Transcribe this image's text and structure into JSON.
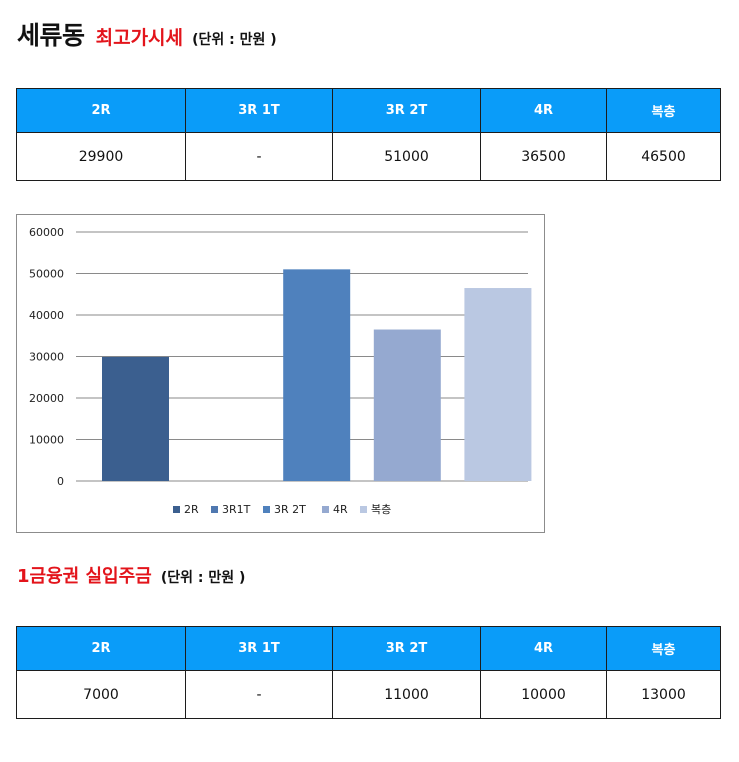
{
  "section1": {
    "title": "세류동",
    "subtitle": "최고가시세",
    "unit": "(단위 : 만원 )",
    "headers": [
      "2R",
      "3R 1T",
      "3R 2T",
      "4R",
      "복층"
    ],
    "values": [
      "29900",
      "-",
      "51000",
      "36500",
      "46500"
    ]
  },
  "chart_data": {
    "type": "bar",
    "categories": [
      "2R",
      "3R1T",
      "3R 2T",
      "4R",
      "복층"
    ],
    "values": [
      29900,
      0,
      51000,
      36500,
      46500
    ],
    "colors": [
      "#3b5f8f",
      "#4f78b0",
      "#4f81bd",
      "#95a9d0",
      "#bac8e2"
    ],
    "ylim": [
      0,
      60000
    ],
    "yticks": [
      "0",
      "10000",
      "20000",
      "30000",
      "40000",
      "50000",
      "60000"
    ],
    "grid": true,
    "legend_position": "bottom"
  },
  "section2": {
    "title": "1금융권 실입주금",
    "unit": "(단위 : 만원 )",
    "headers": [
      "2R",
      "3R 1T",
      "3R 2T",
      "4R",
      "복층"
    ],
    "values": [
      "7000",
      "-",
      "11000",
      "10000",
      "13000"
    ]
  }
}
